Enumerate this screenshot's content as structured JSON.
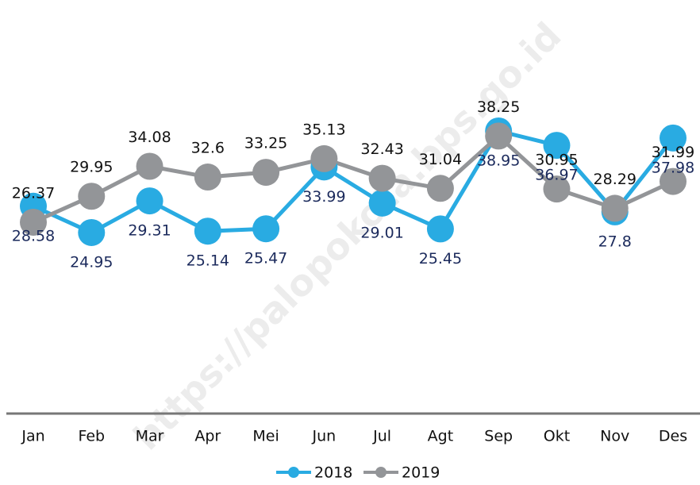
{
  "chart_data": {
    "type": "line",
    "watermark": "https://palopokota.bps.go.id",
    "categories": [
      "Jan",
      "Feb",
      "Mar",
      "Apr",
      "Mei",
      "Jun",
      "Jul",
      "Agt",
      "Sep",
      "Okt",
      "Nov",
      "Des"
    ],
    "series": [
      {
        "name": "2018",
        "color": "#29abe2",
        "label_color": "#1b2a5c",
        "values": [
          28.58,
          24.95,
          29.31,
          25.14,
          25.47,
          33.99,
          29.01,
          25.45,
          38.95,
          36.97,
          27.8,
          37.98
        ]
      },
      {
        "name": "2019",
        "color": "#939598",
        "label_color": "#111111",
        "values": [
          26.37,
          29.95,
          34.08,
          32.6,
          33.25,
          35.13,
          32.43,
          31.04,
          38.25,
          30.95,
          28.29,
          31.99
        ]
      }
    ],
    "ylim": [
      0,
      57
    ]
  }
}
